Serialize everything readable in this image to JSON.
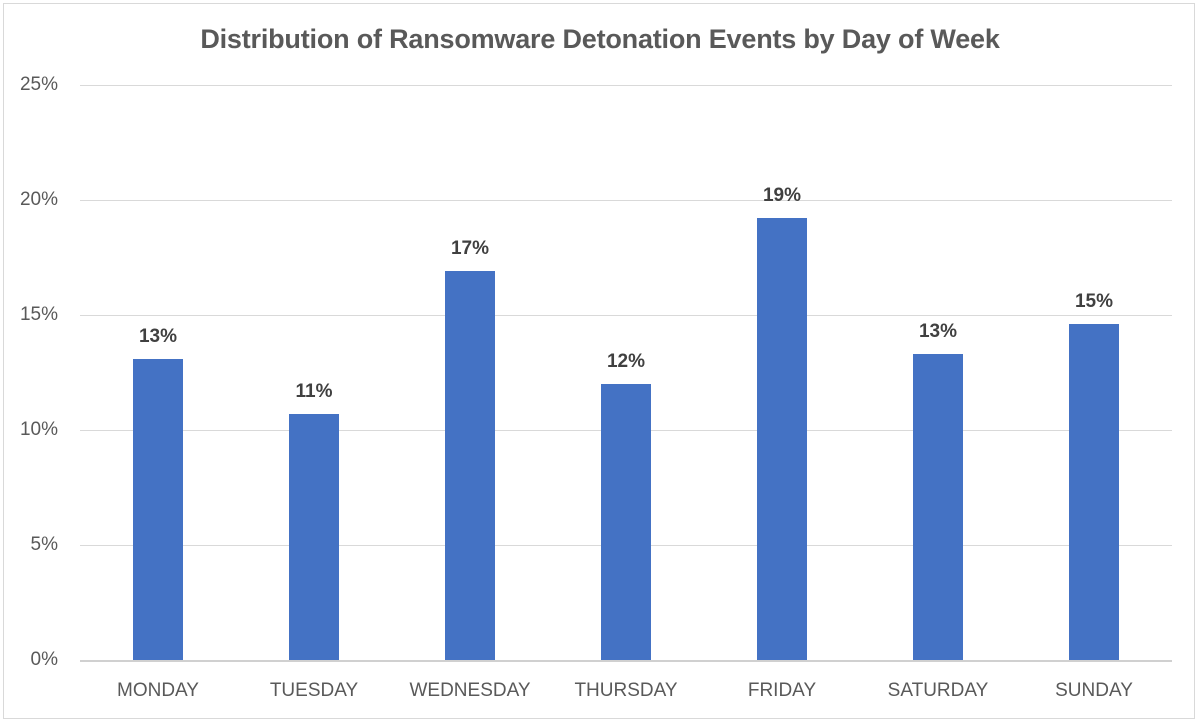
{
  "chart_data": {
    "type": "bar",
    "title": "Distribution of Ransomware Detonation Events by Day of Week",
    "xlabel": "",
    "ylabel": "",
    "categories": [
      "MONDAY",
      "TUESDAY",
      "WEDNESDAY",
      "THURSDAY",
      "FRIDAY",
      "SATURDAY",
      "SUNDAY"
    ],
    "values": [
      13.1,
      10.7,
      16.9,
      12.0,
      19.2,
      13.3,
      14.6
    ],
    "data_labels": [
      "13%",
      "11%",
      "17%",
      "12%",
      "19%",
      "13%",
      "15%"
    ],
    "ylim": [
      0,
      25
    ],
    "yticks": [
      "0%",
      "5%",
      "10%",
      "15%",
      "20%",
      "25%"
    ],
    "grid": true,
    "legend": null,
    "bar_color": "#4472c4"
  },
  "title": "Distribution of Ransomware Detonation Events by Day of Week",
  "y_axis": {
    "ticks": [
      "25%",
      "20%",
      "15%",
      "10%",
      "5%",
      "0%"
    ]
  },
  "bars": [
    {
      "day": "MONDAY",
      "label": "13%"
    },
    {
      "day": "TUESDAY",
      "label": "11%"
    },
    {
      "day": "WEDNESDAY",
      "label": "17%"
    },
    {
      "day": "THURSDAY",
      "label": "12%"
    },
    {
      "day": "FRIDAY",
      "label": "19%"
    },
    {
      "day": "SATURDAY",
      "label": "13%"
    },
    {
      "day": "SUNDAY",
      "label": "15%"
    }
  ]
}
